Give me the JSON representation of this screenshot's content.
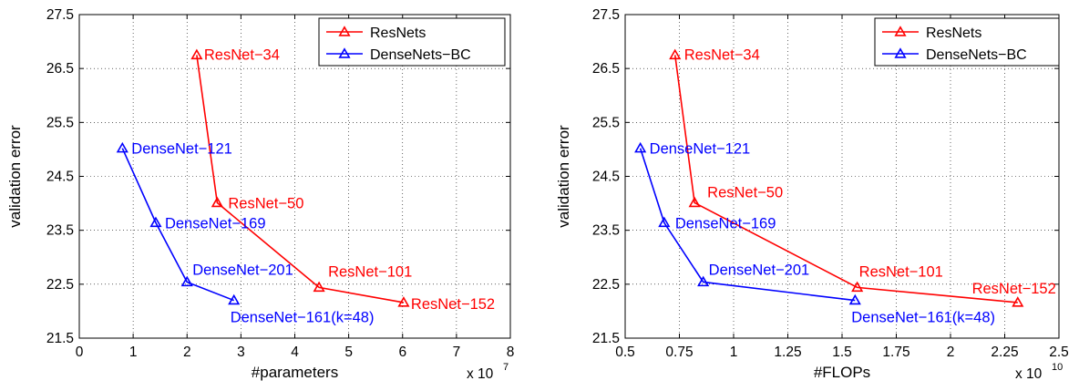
{
  "chart_data": [
    {
      "type": "line",
      "xlabel": "#parameters",
      "ylabel": "validation error",
      "x_exponent_base": "x 10",
      "x_exponent_power": "7",
      "xlim": [
        0,
        8
      ],
      "ylim": [
        21.5,
        27.5
      ],
      "xticks": [
        0,
        1,
        2,
        3,
        4,
        5,
        6,
        7,
        8
      ],
      "xtick_labels": [
        "0",
        "1",
        "2",
        "3",
        "4",
        "5",
        "6",
        "7",
        "8"
      ],
      "yticks": [
        21.5,
        22.5,
        23.5,
        24.5,
        25.5,
        26.5,
        27.5
      ],
      "ytick_labels": [
        "21.5",
        "22.5",
        "23.5",
        "24.5",
        "25.5",
        "26.5",
        "27.5"
      ],
      "grid": true,
      "legend_position": "top-right",
      "series": [
        {
          "name": "ResNets",
          "color": "#ff0000",
          "points": [
            {
              "label": "ResNet-34",
              "x": 2.18,
              "y": 26.75
            },
            {
              "label": "ResNet-50",
              "x": 2.56,
              "y": 24.01
            },
            {
              "label": "ResNet-101",
              "x": 4.45,
              "y": 22.44
            },
            {
              "label": "ResNet-152",
              "x": 6.02,
              "y": 22.16
            }
          ]
        },
        {
          "name": "DenseNets-BC",
          "color": "#0000ff",
          "points": [
            {
              "label": "DenseNet-121",
              "x": 0.8,
              "y": 25.02
            },
            {
              "label": "DenseNet-169",
              "x": 1.42,
              "y": 23.64
            },
            {
              "label": "DenseNet-201",
              "x": 2.0,
              "y": 22.54
            },
            {
              "label": "DenseNet-161(k=48)",
              "x": 2.87,
              "y": 22.2
            }
          ]
        }
      ]
    },
    {
      "type": "line",
      "xlabel": "#FLOPs",
      "ylabel": "validation error",
      "x_exponent_base": "x 10",
      "x_exponent_power": "10",
      "xlim": [
        0.5,
        2.5
      ],
      "ylim": [
        21.5,
        27.5
      ],
      "xticks": [
        0.5,
        0.75,
        1,
        1.25,
        1.5,
        1.75,
        2,
        2.25,
        2.5
      ],
      "xtick_labels": [
        "0.5",
        "0.75",
        "1",
        "1.25",
        "1.5",
        "1.75",
        "2",
        "2.25",
        "2.5"
      ],
      "yticks": [
        21.5,
        22.5,
        23.5,
        24.5,
        25.5,
        26.5,
        27.5
      ],
      "ytick_labels": [
        "21.5",
        "22.5",
        "23.5",
        "24.5",
        "25.5",
        "26.5",
        "27.5"
      ],
      "grid": true,
      "legend_position": "top-right",
      "series": [
        {
          "name": "ResNets",
          "color": "#ff0000",
          "points": [
            {
              "label": "ResNet-34",
              "x": 0.73,
              "y": 26.75
            },
            {
              "label": "ResNet-50",
              "x": 0.82,
              "y": 24.01
            },
            {
              "label": "ResNet-101",
              "x": 1.57,
              "y": 22.44
            },
            {
              "label": "ResNet-152",
              "x": 2.31,
              "y": 22.16
            }
          ]
        },
        {
          "name": "DenseNets-BC",
          "color": "#0000ff",
          "points": [
            {
              "label": "DenseNet-121",
              "x": 0.57,
              "y": 25.02
            },
            {
              "label": "DenseNet-169",
              "x": 0.68,
              "y": 23.64
            },
            {
              "label": "DenseNet-201",
              "x": 0.86,
              "y": 22.54
            },
            {
              "label": "DenseNet-161(k=48)",
              "x": 1.56,
              "y": 22.2
            }
          ]
        }
      ]
    }
  ]
}
